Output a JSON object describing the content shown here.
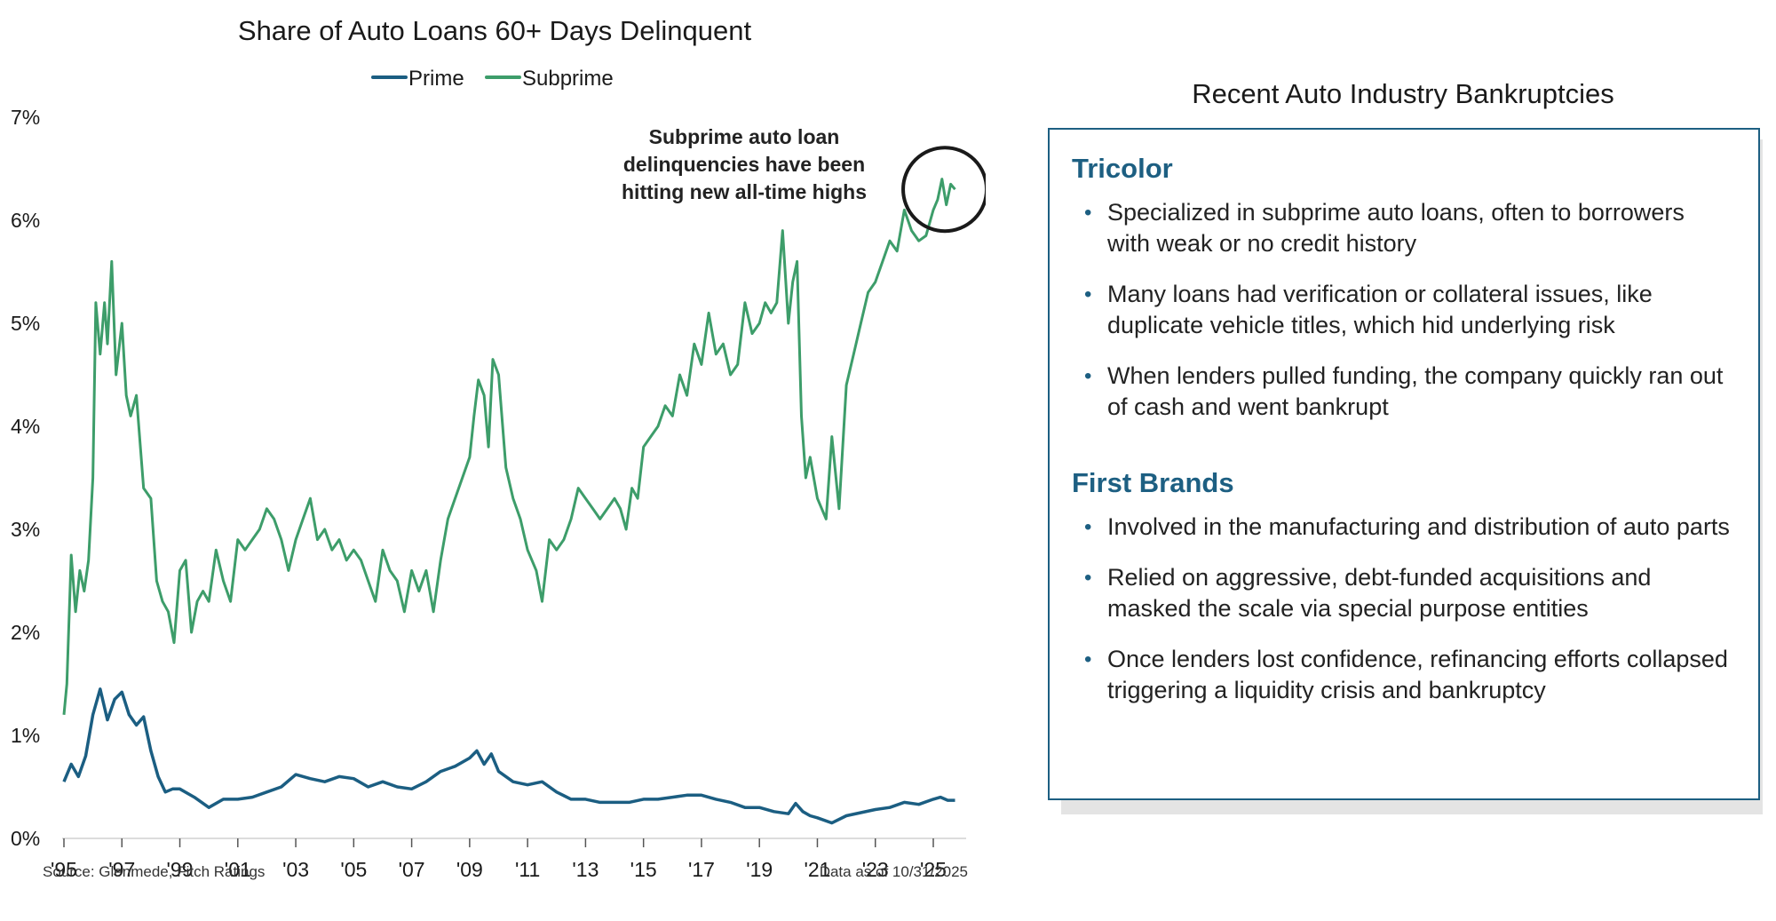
{
  "chart_data": {
    "type": "line",
    "title": "Share of Auto Loans 60+ Days Delinquent",
    "ylim": [
      0,
      7
    ],
    "y_ticks": [
      "0%",
      "1%",
      "2%",
      "3%",
      "4%",
      "5%",
      "6%",
      "7%"
    ],
    "x_ticks": [
      "'95",
      "'97",
      "'99",
      "'01",
      "'03",
      "'05",
      "'07",
      "'09",
      "'11",
      "'13",
      "'15",
      "'17",
      "'19",
      "'21",
      "'23",
      "'25"
    ],
    "grid": "off",
    "legend_placement": "top-center",
    "series": [
      {
        "name": "Prime",
        "color": "#1b5e82",
        "x": [
          1995.0,
          1995.25,
          1995.5,
          1995.75,
          1996.0,
          1996.25,
          1996.5,
          1996.75,
          1997.0,
          1997.25,
          1997.5,
          1997.75,
          1998.0,
          1998.25,
          1998.5,
          1998.75,
          1999.0,
          1999.5,
          2000.0,
          2000.5,
          2001.0,
          2001.5,
          2002.0,
          2002.5,
          2003.0,
          2003.5,
          2004.0,
          2004.5,
          2005.0,
          2005.5,
          2006.0,
          2006.5,
          2007.0,
          2007.5,
          2008.0,
          2008.5,
          2009.0,
          2009.25,
          2009.5,
          2009.75,
          2010.0,
          2010.5,
          2011.0,
          2011.5,
          2012.0,
          2012.5,
          2013.0,
          2013.5,
          2014.0,
          2014.5,
          2015.0,
          2015.5,
          2016.0,
          2016.5,
          2017.0,
          2017.5,
          2018.0,
          2018.5,
          2019.0,
          2019.5,
          2020.0,
          2020.25,
          2020.5,
          2020.75,
          2021.0,
          2021.5,
          2022.0,
          2022.5,
          2023.0,
          2023.5,
          2024.0,
          2024.5,
          2025.0,
          2025.25,
          2025.5,
          2025.75
        ],
        "values": [
          0.55,
          0.72,
          0.6,
          0.8,
          1.2,
          1.45,
          1.15,
          1.35,
          1.42,
          1.2,
          1.1,
          1.18,
          0.85,
          0.6,
          0.45,
          0.48,
          0.48,
          0.4,
          0.3,
          0.38,
          0.38,
          0.4,
          0.45,
          0.5,
          0.62,
          0.58,
          0.55,
          0.6,
          0.58,
          0.5,
          0.55,
          0.5,
          0.48,
          0.55,
          0.65,
          0.7,
          0.78,
          0.85,
          0.72,
          0.82,
          0.65,
          0.55,
          0.52,
          0.55,
          0.45,
          0.38,
          0.38,
          0.35,
          0.35,
          0.35,
          0.38,
          0.38,
          0.4,
          0.42,
          0.42,
          0.38,
          0.35,
          0.3,
          0.3,
          0.26,
          0.24,
          0.34,
          0.26,
          0.22,
          0.2,
          0.15,
          0.22,
          0.25,
          0.28,
          0.3,
          0.35,
          0.33,
          0.38,
          0.4,
          0.37,
          0.37
        ]
      },
      {
        "name": "Subprime",
        "color": "#3d9d6a",
        "x": [
          1995.0,
          1995.1,
          1995.25,
          1995.4,
          1995.55,
          1995.7,
          1995.85,
          1996.0,
          1996.1,
          1996.25,
          1996.4,
          1996.5,
          1996.65,
          1996.8,
          1997.0,
          1997.15,
          1997.3,
          1997.5,
          1997.75,
          1998.0,
          1998.2,
          1998.4,
          1998.6,
          1998.8,
          1999.0,
          1999.2,
          1999.4,
          1999.6,
          1999.8,
          2000.0,
          2000.25,
          2000.5,
          2000.75,
          2001.0,
          2001.25,
          2001.5,
          2001.75,
          2002.0,
          2002.25,
          2002.5,
          2002.75,
          2003.0,
          2003.25,
          2003.5,
          2003.75,
          2004.0,
          2004.25,
          2004.5,
          2004.75,
          2005.0,
          2005.25,
          2005.5,
          2005.75,
          2006.0,
          2006.25,
          2006.5,
          2006.75,
          2007.0,
          2007.25,
          2007.5,
          2007.75,
          2008.0,
          2008.25,
          2008.5,
          2008.75,
          2009.0,
          2009.15,
          2009.3,
          2009.5,
          2009.65,
          2009.8,
          2010.0,
          2010.25,
          2010.5,
          2010.75,
          2011.0,
          2011.15,
          2011.3,
          2011.5,
          2011.75,
          2012.0,
          2012.25,
          2012.5,
          2012.75,
          2013.0,
          2013.25,
          2013.5,
          2013.75,
          2014.0,
          2014.2,
          2014.4,
          2014.6,
          2014.8,
          2015.0,
          2015.25,
          2015.5,
          2015.75,
          2016.0,
          2016.25,
          2016.5,
          2016.75,
          2017.0,
          2017.25,
          2017.5,
          2017.75,
          2018.0,
          2018.25,
          2018.5,
          2018.75,
          2019.0,
          2019.2,
          2019.4,
          2019.6,
          2019.8,
          2020.0,
          2020.15,
          2020.3,
          2020.45,
          2020.6,
          2020.75,
          2021.0,
          2021.15,
          2021.3,
          2021.5,
          2021.75,
          2022.0,
          2022.25,
          2022.5,
          2022.75,
          2023.0,
          2023.25,
          2023.5,
          2023.75,
          2024.0,
          2024.25,
          2024.5,
          2024.75,
          2025.0,
          2025.15,
          2025.3,
          2025.45,
          2025.6,
          2025.75
        ],
        "values": [
          1.2,
          1.5,
          2.75,
          2.2,
          2.6,
          2.4,
          2.7,
          3.5,
          5.2,
          4.7,
          5.2,
          4.8,
          5.6,
          4.5,
          5.0,
          4.3,
          4.1,
          4.3,
          3.4,
          3.3,
          2.5,
          2.3,
          2.2,
          1.9,
          2.6,
          2.7,
          2.0,
          2.3,
          2.4,
          2.3,
          2.8,
          2.5,
          2.3,
          2.9,
          2.8,
          2.9,
          3.0,
          3.2,
          3.1,
          2.9,
          2.6,
          2.9,
          3.1,
          3.3,
          2.9,
          3.0,
          2.8,
          2.9,
          2.7,
          2.8,
          2.7,
          2.5,
          2.3,
          2.8,
          2.6,
          2.5,
          2.2,
          2.6,
          2.4,
          2.6,
          2.2,
          2.7,
          3.1,
          3.3,
          3.5,
          3.7,
          4.1,
          4.45,
          4.3,
          3.8,
          4.65,
          4.5,
          3.6,
          3.3,
          3.1,
          2.8,
          2.7,
          2.6,
          2.3,
          2.9,
          2.8,
          2.9,
          3.1,
          3.4,
          3.3,
          3.2,
          3.1,
          3.2,
          3.3,
          3.2,
          3.0,
          3.4,
          3.3,
          3.8,
          3.9,
          4.0,
          4.2,
          4.1,
          4.5,
          4.3,
          4.8,
          4.6,
          5.1,
          4.7,
          4.8,
          4.5,
          4.6,
          5.2,
          4.9,
          5.0,
          5.2,
          5.1,
          5.2,
          5.9,
          5.0,
          5.4,
          5.6,
          4.1,
          3.5,
          3.7,
          3.3,
          3.2,
          3.1,
          3.9,
          3.2,
          4.4,
          4.7,
          5.0,
          5.3,
          5.4,
          5.6,
          5.8,
          5.7,
          6.1,
          5.9,
          5.8,
          5.85,
          6.1,
          6.2,
          6.4,
          6.15,
          6.35,
          6.3
        ]
      }
    ],
    "annotation": {
      "lines": [
        "Subprime auto loan",
        "delinquencies have been",
        "hitting new all-time highs"
      ],
      "circle_x": 2025.4,
      "circle_y": 6.3
    },
    "source": "Source: Glenmede, Fitch Ratings",
    "data_as_of": "Data as of 10/31/2025"
  },
  "panel": {
    "title": "Recent Auto Industry Bankruptcies",
    "companies": [
      {
        "name": "Tricolor",
        "bullets": [
          "Specialized in subprime auto loans, often to borrowers with weak or no credit history",
          "Many loans had verification or collateral issues, like duplicate vehicle titles, which hid underlying risk",
          "When lenders pulled funding, the company quickly ran out of cash and went bankrupt"
        ]
      },
      {
        "name": "First Brands",
        "bullets": [
          "Involved in the manufacturing and distribution of auto parts",
          "Relied on aggressive, debt-funded acquisitions and masked the scale via special purpose entities",
          "Once lenders lost confidence, refinancing efforts collapsed triggering a liquidity crisis and bankruptcy"
        ]
      }
    ],
    "bullet_glyph": "•"
  }
}
